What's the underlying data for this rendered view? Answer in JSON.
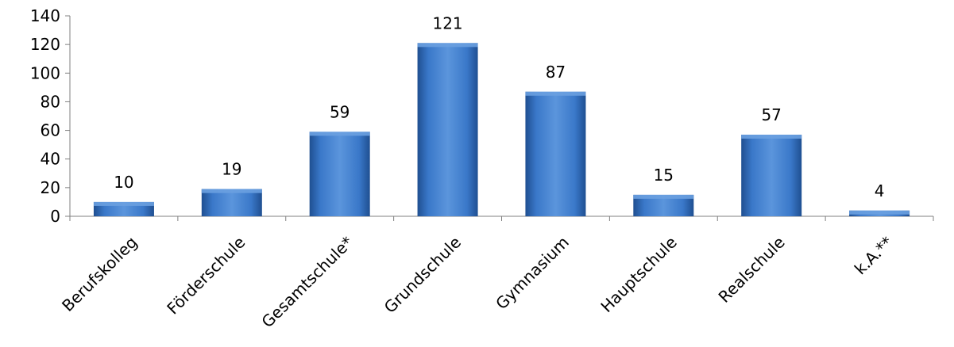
{
  "chart_data": {
    "type": "bar",
    "categories": [
      "Berufskolleg",
      "Förderschule",
      "Gesamtschule*",
      "Grundschule",
      "Gymnasium",
      "Hauptschule",
      "Realschule",
      "k.A.**"
    ],
    "values": [
      10,
      19,
      59,
      121,
      87,
      15,
      57,
      4
    ],
    "data_labels": [
      "10",
      "19",
      "59",
      "121",
      "87",
      "15",
      "57",
      "4"
    ],
    "yticks": [
      "0",
      "20",
      "40",
      "60",
      "80",
      "100",
      "120",
      "140"
    ],
    "ylim": [
      0,
      140
    ],
    "grid": false,
    "legend": "none",
    "title": "",
    "xlabel": "",
    "ylabel": "",
    "colors": {
      "bar": "#3a78c9",
      "bar_light": "#6aa0e0",
      "bar_dark": "#1f4f91",
      "axis": "#808080"
    }
  }
}
